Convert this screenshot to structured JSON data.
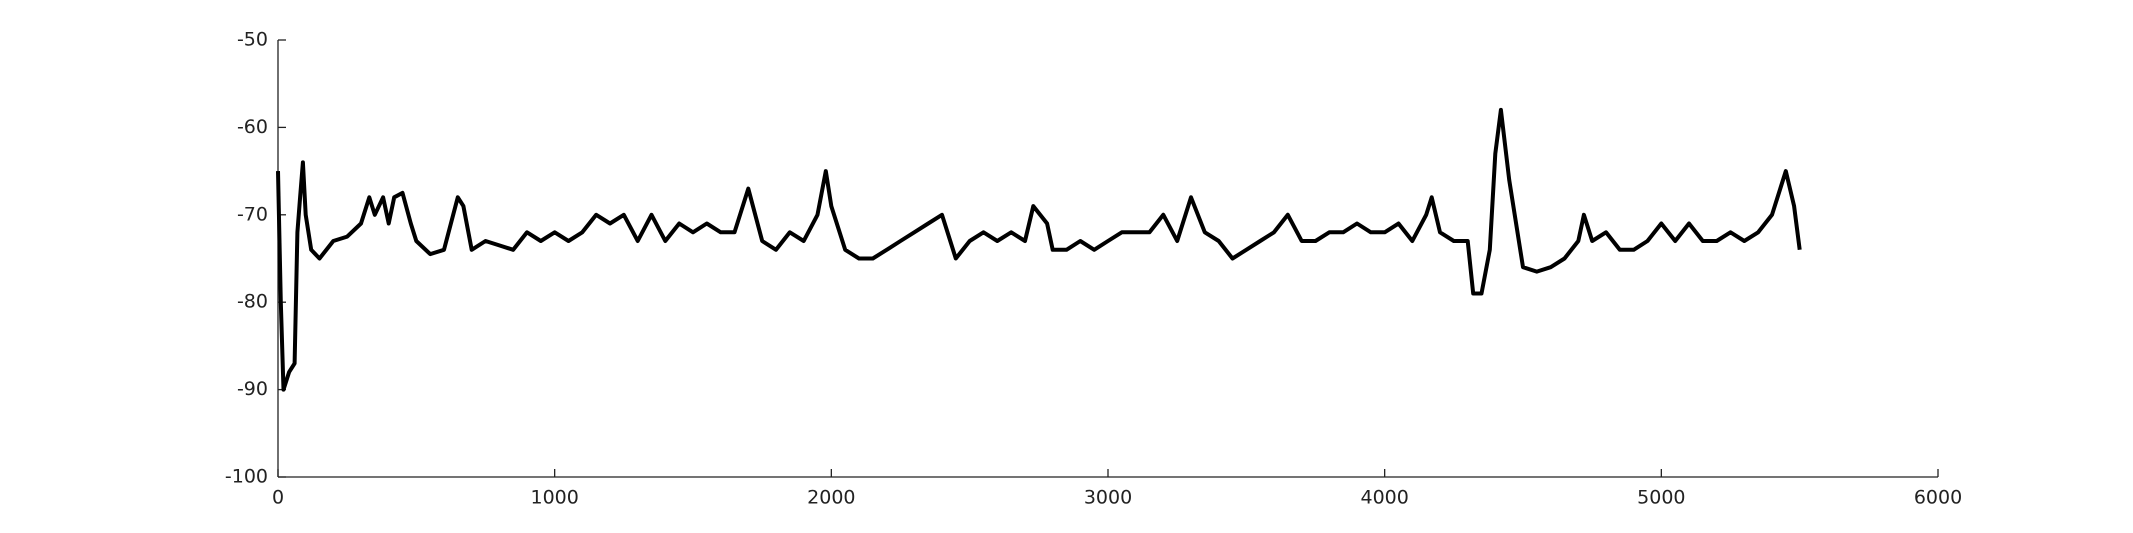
{
  "chart_data": {
    "type": "line",
    "x": [
      0,
      10,
      20,
      40,
      60,
      70,
      80,
      90,
      100,
      120,
      150,
      200,
      250,
      300,
      330,
      350,
      380,
      400,
      420,
      450,
      480,
      500,
      550,
      600,
      650,
      670,
      700,
      750,
      800,
      850,
      900,
      950,
      1000,
      1050,
      1100,
      1150,
      1200,
      1250,
      1300,
      1350,
      1400,
      1450,
      1500,
      1550,
      1600,
      1650,
      1700,
      1750,
      1800,
      1850,
      1900,
      1950,
      1980,
      2000,
      2050,
      2100,
      2150,
      2200,
      2250,
      2300,
      2350,
      2400,
      2450,
      2500,
      2550,
      2600,
      2650,
      2700,
      2730,
      2780,
      2800,
      2850,
      2900,
      2950,
      3000,
      3050,
      3100,
      3150,
      3200,
      3250,
      3300,
      3350,
      3400,
      3450,
      3500,
      3550,
      3600,
      3650,
      3700,
      3750,
      3800,
      3850,
      3900,
      3950,
      4000,
      4050,
      4100,
      4150,
      4170,
      4200,
      4250,
      4300,
      4320,
      4350,
      4380,
      4400,
      4420,
      4450,
      4500,
      4550,
      4600,
      4650,
      4700,
      4720,
      4750,
      4800,
      4850,
      4900,
      4950,
      5000,
      5050,
      5100,
      5150,
      5200,
      5250,
      5300,
      5350,
      5400,
      5450,
      5480,
      5500
    ],
    "values": [
      -65,
      -80,
      -90,
      -88,
      -87,
      -72,
      -68,
      -64,
      -70,
      -74,
      -75,
      -73,
      -72.5,
      -71,
      -68,
      -70,
      -68,
      -71,
      -68,
      -67.5,
      -71,
      -73,
      -74.5,
      -74,
      -68,
      -69,
      -74,
      -73,
      -73.5,
      -74,
      -72,
      -73,
      -72,
      -73,
      -72,
      -70,
      -71,
      -70,
      -73,
      -70,
      -73,
      -71,
      -72,
      -71,
      -72,
      -72,
      -67,
      -73,
      -74,
      -72,
      -73,
      -70,
      -65,
      -69,
      -74,
      -75,
      -75,
      -74,
      -73,
      -72,
      -71,
      -70,
      -75,
      -73,
      -72,
      -73,
      -72,
      -73,
      -69,
      -71,
      -74,
      -74,
      -73,
      -74,
      -73,
      -72,
      -72,
      -72,
      -70,
      -73,
      -68,
      -72,
      -73,
      -75,
      -74,
      -73,
      -72,
      -70,
      -73,
      -73,
      -72,
      -72,
      -71,
      -72,
      -72,
      -71,
      -73,
      -70,
      -68,
      -72,
      -73,
      -73,
      -79,
      -79,
      -74,
      -63,
      -58,
      -66,
      -76,
      -76.5,
      -76,
      -75,
      -73,
      -70,
      -73,
      -72,
      -74,
      -74,
      -73,
      -71,
      -73,
      -71,
      -73,
      -73,
      -72,
      -73,
      -72,
      -70,
      -65,
      -69,
      -74
    ],
    "color": "#000000",
    "xlim": [
      0,
      6000
    ],
    "xticks": [
      0,
      1000,
      2000,
      3000,
      4000,
      5000,
      6000
    ],
    "ylim": [
      -100,
      -50
    ],
    "yticks": [
      -100,
      -90,
      -80,
      -70,
      -60,
      -50
    ]
  }
}
